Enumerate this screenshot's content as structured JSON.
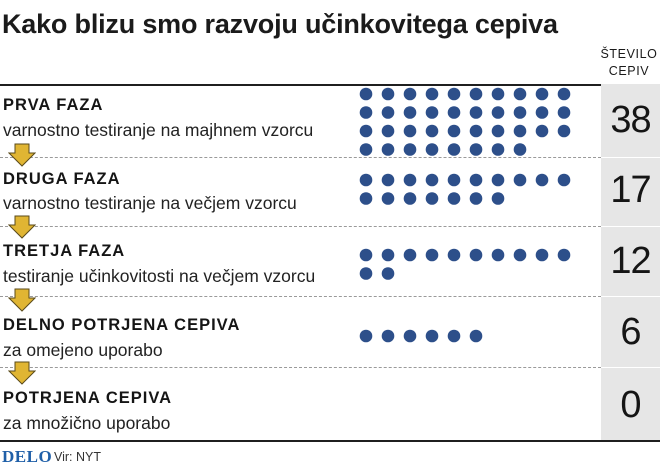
{
  "title": "Kako blizu smo razvoju učinkovitega cepiva",
  "column_header": [
    "ŠTEVILO",
    "CEPIV"
  ],
  "colors": {
    "dot": "#2d4f8a",
    "arrow": "#e0b533",
    "numbers_bg": "#e6e6e6",
    "logo": "#1f5fa8"
  },
  "chart_data": {
    "type": "table",
    "title": "Kako blizu smo razvoju učinkovitega cepiva",
    "column_header": "ŠTEVILO CEPIV",
    "rows": [
      {
        "phase": "PRVA FAZA",
        "description": "varnostno testiranje na majhnem vzorcu",
        "count": 38
      },
      {
        "phase": "DRUGA FAZA",
        "description": "varnostno testiranje na večjem vzorcu",
        "count": 17
      },
      {
        "phase": "TRETJA FAZA",
        "description": "testiranje učinkovitosti na večjem vzorcu",
        "count": 12
      },
      {
        "phase": "DELNO POTRJENA CEPIVA",
        "description": "za omejeno uporabo",
        "count": 6
      },
      {
        "phase": "POTRJENA CEPIVA",
        "description": "za množično uporabo",
        "count": 0
      }
    ],
    "dots_per_row": 10,
    "arrow_icon": "down-arrow-icon"
  },
  "footer": {
    "logo": "DELO",
    "source": "Vir: NYT"
  }
}
